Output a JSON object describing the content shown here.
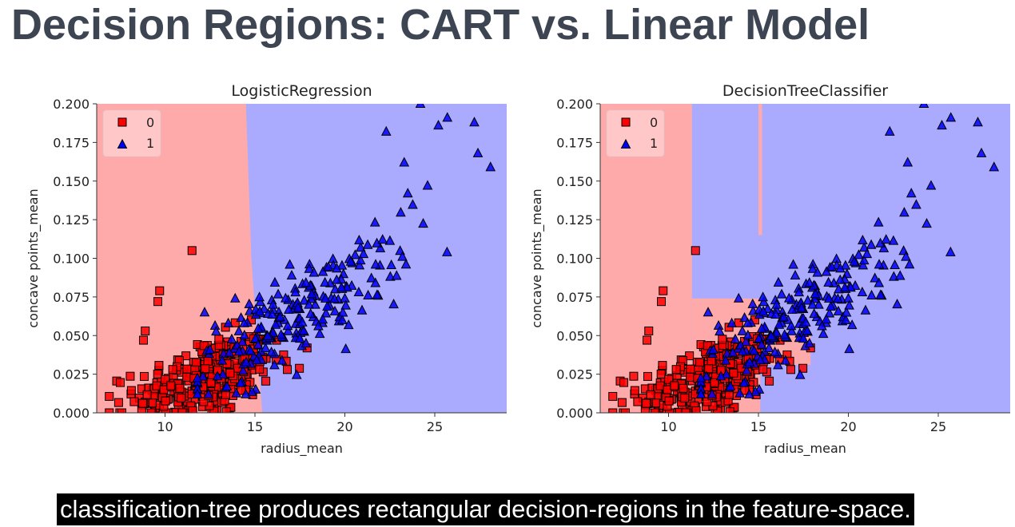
{
  "slide": {
    "title": "Decision Regions: CART vs. Linear Model",
    "caption": "classification-tree produces rectangular decision-regions in the feature-space."
  },
  "colors": {
    "class0_region": "#ffaaaa",
    "class1_region": "#aaaaff",
    "class0_marker": "#ff0000",
    "class1_marker": "#0000ff"
  },
  "chart_data": [
    {
      "type": "scatter",
      "title": "LogisticRegression",
      "xlabel": "radius_mean",
      "ylabel": "concave points_mean",
      "xlim": [
        6.2,
        29.0
      ],
      "ylim": [
        0.0,
        0.2
      ],
      "xticks": [
        10,
        15,
        20,
        25
      ],
      "yticks": [
        0.0,
        0.025,
        0.05,
        0.075,
        0.1,
        0.125,
        0.15,
        0.175,
        0.2
      ],
      "xtick_labels": [
        "10",
        "15",
        "20",
        "25"
      ],
      "ytick_labels": [
        "0.000",
        "0.025",
        "0.050",
        "0.075",
        "0.100",
        "0.125",
        "0.150",
        "0.175",
        "0.200"
      ],
      "legend": {
        "placement": "top-left",
        "entries": [
          "0",
          "1"
        ]
      },
      "decision_boundary": {
        "type": "linear",
        "points": [
          [
            15.4,
            0.0
          ],
          [
            14.8,
            0.1
          ],
          [
            14.5,
            0.2
          ]
        ],
        "left_class": "0",
        "right_class": "1"
      }
    },
    {
      "type": "scatter",
      "title": "DecisionTreeClassifier",
      "xlabel": "radius_mean",
      "ylabel": "concave points_mean",
      "xlim": [
        6.2,
        29.0
      ],
      "ylim": [
        0.0,
        0.2
      ],
      "xticks": [
        10,
        15,
        20,
        25
      ],
      "yticks": [
        0.0,
        0.025,
        0.05,
        0.075,
        0.1,
        0.125,
        0.15,
        0.175,
        0.2
      ],
      "xtick_labels": [
        "10",
        "15",
        "20",
        "25"
      ],
      "ytick_labels": [
        "0.000",
        "0.025",
        "0.050",
        "0.075",
        "0.100",
        "0.125",
        "0.150",
        "0.175",
        "0.200"
      ],
      "legend": {
        "placement": "top-left",
        "entries": [
          "0",
          "1"
        ]
      },
      "decision_boundary": {
        "type": "rectangles",
        "class0_rects": [
          {
            "x": [
              6.2,
              11.3
            ],
            "y": [
              0.0,
              0.2
            ]
          },
          {
            "x": [
              11.3,
              15.1
            ],
            "y": [
              0.0,
              0.074
            ]
          },
          {
            "x": [
              15.1,
              17.9
            ],
            "y": [
              0.031,
              0.05
            ]
          },
          {
            "x": [
              15.0,
              15.2
            ],
            "y": [
              0.115,
              0.2
            ]
          }
        ],
        "background_class": "1"
      }
    }
  ]
}
